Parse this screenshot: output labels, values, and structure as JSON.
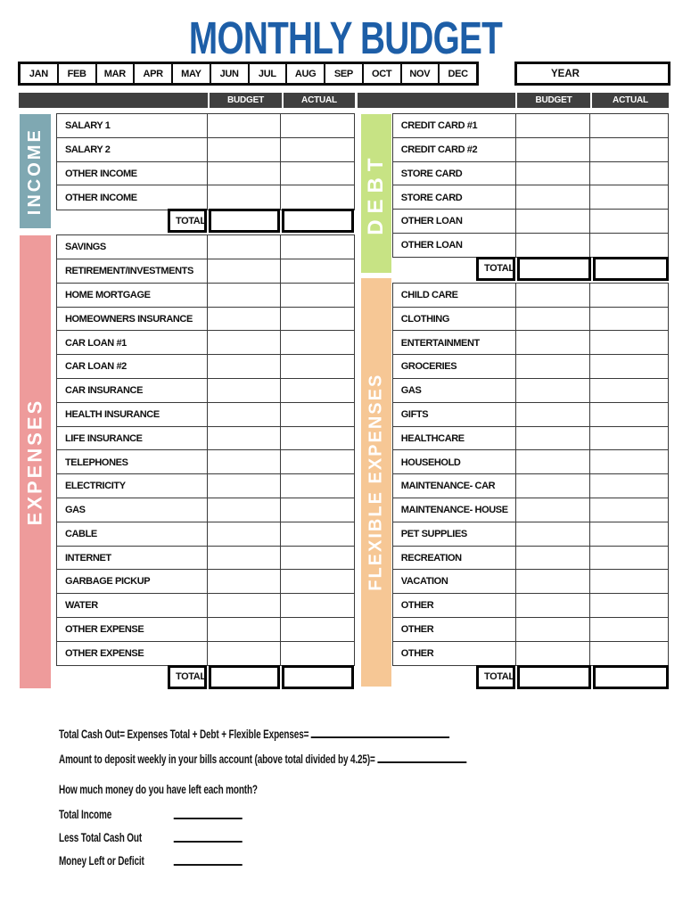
{
  "title": "MONTHLY BUDGET",
  "year_label": "YEAR",
  "months": [
    "JAN",
    "FEB",
    "MAR",
    "APR",
    "MAY",
    "JUN",
    "JUL",
    "AUG",
    "SEP",
    "OCT",
    "NOV",
    "DEC"
  ],
  "table_header": {
    "budget": "BUDGET",
    "actual": "ACTUAL"
  },
  "total_label": "TOTAL",
  "sections": {
    "income": {
      "label": "INCOME",
      "color": "#7fa8b2",
      "rows": [
        "SALARY 1",
        "SALARY 2",
        "OTHER INCOME",
        "OTHER INCOME"
      ]
    },
    "expenses": {
      "label": "EXPENSES",
      "color": "#ee9b9b",
      "rows": [
        "SAVINGS",
        "RETIREMENT/INVESTMENTS",
        "HOME MORTGAGE",
        "HOMEOWNERS INSURANCE",
        "CAR LOAN #1",
        "CAR LOAN #2",
        "CAR INSURANCE",
        "HEALTH INSURANCE",
        "LIFE INSURANCE",
        "TELEPHONES",
        "ELECTRICITY",
        "GAS",
        "CABLE",
        "INTERNET",
        "GARBAGE PICKUP",
        "WATER",
        "OTHER EXPENSE",
        "OTHER EXPENSE"
      ]
    },
    "debt": {
      "label": "DEBT",
      "color": "#c7e384",
      "rows": [
        "CREDIT CARD #1",
        "CREDIT CARD #2",
        "STORE CARD",
        "STORE CARD",
        "OTHER LOAN",
        "OTHER LOAN"
      ]
    },
    "flexible": {
      "label": "FLEXIBLE EXPENSES",
      "color": "#f6c795",
      "rows": [
        "CHILD CARE",
        "CLOTHING",
        "ENTERTAINMENT",
        "GROCERIES",
        "GAS",
        "GIFTS",
        "HEALTHCARE",
        "HOUSEHOLD",
        "MAINTENANCE- CAR",
        "MAINTENANCE- HOUSE",
        "PET SUPPLIES",
        "RECREATION",
        "VACATION",
        "OTHER",
        "OTHER",
        "OTHER"
      ]
    }
  },
  "footer": {
    "cash_out_label": "Total Cash Out= Expenses Total + Debt + Flexible Expenses=",
    "weekly_deposit_label": "Amount to deposit weekly in your bills account (above total divided by 4.25)=",
    "question": "How much money do you have left each month?",
    "summary_rows": [
      "Total Income",
      "Less Total Cash Out",
      "Money Left or Deficit"
    ]
  },
  "colors": {
    "title_blue": "#1d5ea7",
    "header_gray": "#3f3f3f",
    "income_teal": "#7fa8b2",
    "expenses_pink": "#ee9b9b",
    "debt_green": "#c7e384",
    "flexible_peach": "#f6c795"
  }
}
